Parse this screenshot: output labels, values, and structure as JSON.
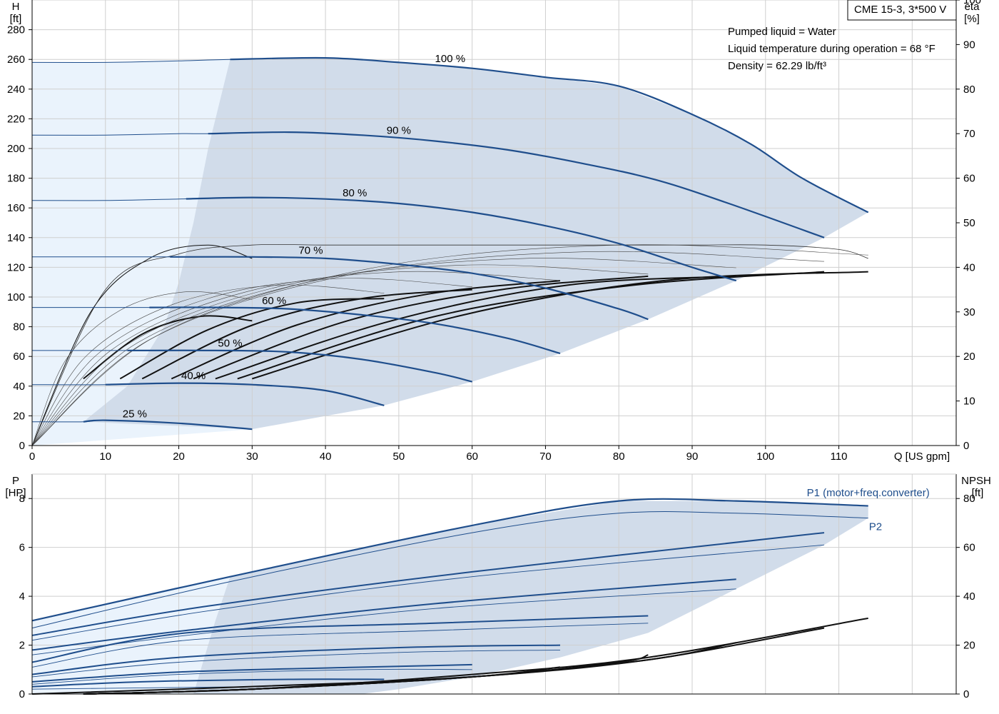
{
  "model_label": "CME 15-3, 3*500 V",
  "info_lines": [
    "Pumped liquid = Water",
    "Liquid temperature during operation = 68 °F",
    "Density = 62.29 lb/ft³"
  ],
  "colors": {
    "curve_blue": "#1f4e8c",
    "area_fill": "#d1dcea",
    "area_fill_light": "#eaf3fc",
    "grid": "#cfcfcf"
  },
  "chart_data": [
    {
      "type": "line",
      "xlabel": "Q [US gpm]",
      "ylabel": "H [ft]",
      "ylabel_right": "eta [%]",
      "xlim": [
        0,
        126
      ],
      "ylim": [
        0,
        300
      ],
      "ylim_right": [
        0,
        100
      ],
      "xticks": [
        0,
        10,
        20,
        30,
        40,
        50,
        60,
        70,
        80,
        90,
        100,
        110
      ],
      "yticks": [
        0,
        20,
        40,
        60,
        80,
        100,
        120,
        140,
        160,
        180,
        200,
        220,
        240,
        260,
        280
      ],
      "yticks_right": [
        0,
        10,
        20,
        30,
        40,
        50,
        60,
        70,
        80,
        90,
        100
      ],
      "grid": true,
      "series": [
        {
          "name": "100 %",
          "x": [
            0,
            10,
            20,
            27,
            40,
            50,
            60,
            70,
            80,
            90,
            98,
            105,
            114
          ],
          "y": [
            258,
            258,
            259,
            260,
            261,
            258,
            254,
            248,
            242,
            223,
            203,
            180,
            157
          ]
        },
        {
          "name": "90 %",
          "x": [
            0,
            10,
            20,
            24,
            35,
            45,
            55,
            65,
            75,
            85,
            95,
            108
          ],
          "y": [
            209,
            209,
            210,
            210,
            211,
            209,
            205,
            199,
            190,
            179,
            163,
            140
          ]
        },
        {
          "name": "80 %",
          "x": [
            0,
            10,
            20,
            30,
            40,
            50,
            60,
            70,
            80,
            90,
            96
          ],
          "y": [
            165,
            165,
            166,
            167,
            166,
            163,
            157,
            148,
            136,
            120,
            111
          ]
        },
        {
          "name": "70 %",
          "x": [
            0,
            10,
            20,
            30,
            40,
            50,
            60,
            70,
            80,
            84
          ],
          "y": [
            127,
            127,
            127,
            127,
            126,
            122,
            116,
            106,
            92,
            85
          ]
        },
        {
          "name": "60 %",
          "x": [
            0,
            10,
            16,
            25,
            35,
            45,
            55,
            65,
            72
          ],
          "y": [
            93,
            93,
            93,
            93,
            92,
            88,
            82,
            72,
            62
          ]
        },
        {
          "name": "50 %",
          "x": [
            0,
            10,
            13,
            25,
            35,
            45,
            55,
            60
          ],
          "y": [
            64,
            64,
            64,
            64,
            63,
            58,
            49,
            43
          ]
        },
        {
          "name": "40 %",
          "x": [
            0,
            10,
            20,
            30,
            40,
            48
          ],
          "y": [
            41,
            41,
            42,
            41,
            37,
            27
          ]
        },
        {
          "name": "25 %",
          "x": [
            0,
            7,
            10,
            20,
            30
          ],
          "y": [
            16,
            16,
            17,
            15,
            11
          ]
        }
      ],
      "efficiency_series": [
        {
          "x": [
            0,
            8,
            16,
            24,
            30
          ],
          "y": [
            0,
            30,
            42,
            45,
            42
          ],
          "yaxis": "right"
        },
        {
          "x": [
            7,
            15,
            23,
            30
          ],
          "y": [
            15,
            25,
            29,
            28
          ],
          "yaxis": "right"
        },
        {
          "x": [
            12,
            24,
            36,
            48
          ],
          "y": [
            15,
            26,
            32,
            33
          ],
          "yaxis": "right"
        },
        {
          "x": [
            15,
            30,
            45,
            60
          ],
          "y": [
            15,
            27,
            33,
            35
          ],
          "yaxis": "right"
        },
        {
          "x": [
            19,
            36,
            54,
            72
          ],
          "y": [
            15,
            27,
            34,
            37
          ],
          "yaxis": "right"
        },
        {
          "x": [
            22,
            43,
            64,
            84
          ],
          "y": [
            15,
            28,
            35,
            38
          ],
          "yaxis": "right"
        },
        {
          "x": [
            25,
            49,
            73,
            96
          ],
          "y": [
            15,
            28,
            36,
            38
          ],
          "yaxis": "right"
        },
        {
          "x": [
            28,
            55,
            82,
            108
          ],
          "y": [
            15,
            29,
            36,
            39
          ],
          "yaxis": "right"
        },
        {
          "x": [
            30,
            58,
            86,
            114
          ],
          "y": [
            15,
            29,
            37,
            39
          ],
          "yaxis": "right"
        }
      ],
      "efficiency_hull": {
        "x": [
          0,
          10,
          20,
          30,
          40,
          50,
          60,
          70,
          80,
          90,
          100,
          110,
          114
        ],
        "y": [
          0,
          35,
          43,
          45,
          45,
          45,
          45,
          45,
          45,
          45,
          45,
          44,
          42
        ],
        "yaxis": "right"
      }
    },
    {
      "type": "line",
      "xlabel": "",
      "ylabel": "P [HP]",
      "ylabel_right": "NPSH [ft]",
      "xlim": [
        0,
        126
      ],
      "ylim": [
        0,
        9
      ],
      "ylim_right": [
        0,
        90
      ],
      "yticks": [
        0,
        2,
        4,
        6,
        8
      ],
      "yticks_right": [
        0,
        20,
        40,
        60,
        80
      ],
      "grid": true,
      "series": [
        {
          "name": "P1 (motor+freq.converter)",
          "x": [
            0,
            27,
            60,
            80,
            96,
            114
          ],
          "y": [
            3.0,
            4.8,
            6.9,
            7.9,
            7.9,
            7.7
          ]
        },
        {
          "name": "P2",
          "x": [
            0,
            27,
            60,
            80,
            96,
            114
          ],
          "y": [
            2.7,
            4.6,
            6.6,
            7.4,
            7.4,
            7.2
          ]
        }
      ],
      "power_series": [
        {
          "x": [
            0,
            24,
            60,
            108
          ],
          "y": [
            2.4,
            3.6,
            5.0,
            6.6
          ]
        },
        {
          "x": [
            0,
            24,
            60,
            108
          ],
          "y": [
            2.2,
            3.4,
            4.8,
            6.1
          ]
        },
        {
          "x": [
            0,
            21,
            55,
            96
          ],
          "y": [
            1.8,
            2.6,
            3.7,
            4.7
          ]
        },
        {
          "x": [
            0,
            21,
            55,
            96
          ],
          "y": [
            1.6,
            2.4,
            3.5,
            4.3
          ]
        },
        {
          "x": [
            0,
            21,
            55,
            84
          ],
          "y": [
            1.3,
            2.5,
            2.9,
            3.2
          ]
        },
        {
          "x": [
            0,
            21,
            55,
            84
          ],
          "y": [
            1.1,
            2.2,
            2.6,
            2.9
          ]
        },
        {
          "x": [
            0,
            20,
            50,
            72
          ],
          "y": [
            0.8,
            1.5,
            1.9,
            2.0
          ]
        },
        {
          "x": [
            0,
            20,
            50,
            72
          ],
          "y": [
            0.7,
            1.3,
            1.7,
            1.8
          ]
        },
        {
          "x": [
            0,
            20,
            45,
            60
          ],
          "y": [
            0.5,
            0.9,
            1.1,
            1.2
          ]
        },
        {
          "x": [
            0,
            20,
            45,
            60
          ],
          "y": [
            0.4,
            0.8,
            1.0,
            1.0
          ]
        },
        {
          "x": [
            0,
            15,
            35,
            48
          ],
          "y": [
            0.3,
            0.5,
            0.6,
            0.6
          ]
        },
        {
          "x": [
            0,
            15,
            30
          ],
          "y": [
            0.2,
            0.25,
            0.3
          ]
        }
      ],
      "npsh_series": [
        {
          "x": [
            7,
            30,
            60,
            84,
            114
          ],
          "y": [
            0,
            2,
            8,
            15,
            31
          ],
          "yaxis": "right"
        },
        {
          "x": [
            7,
            30,
            60,
            84,
            108
          ],
          "y": [
            0,
            2,
            7,
            14,
            27
          ],
          "yaxis": "right"
        },
        {
          "x": [
            7,
            30,
            60,
            84,
            96
          ],
          "y": [
            0,
            2,
            7,
            14,
            21
          ],
          "yaxis": "right"
        },
        {
          "x": [
            7,
            30,
            60,
            80,
            84
          ],
          "y": [
            0,
            2,
            7,
            13,
            16
          ],
          "yaxis": "right"
        },
        {
          "x": [
            7,
            30,
            60,
            72
          ],
          "y": [
            0,
            2,
            7,
            11
          ],
          "yaxis": "right"
        },
        {
          "x": [
            7,
            30,
            60
          ],
          "y": [
            0,
            2,
            7
          ],
          "yaxis": "right"
        },
        {
          "x": [
            0,
            20,
            48
          ],
          "y": [
            0,
            2,
            5
          ],
          "yaxis": "right"
        }
      ]
    }
  ]
}
